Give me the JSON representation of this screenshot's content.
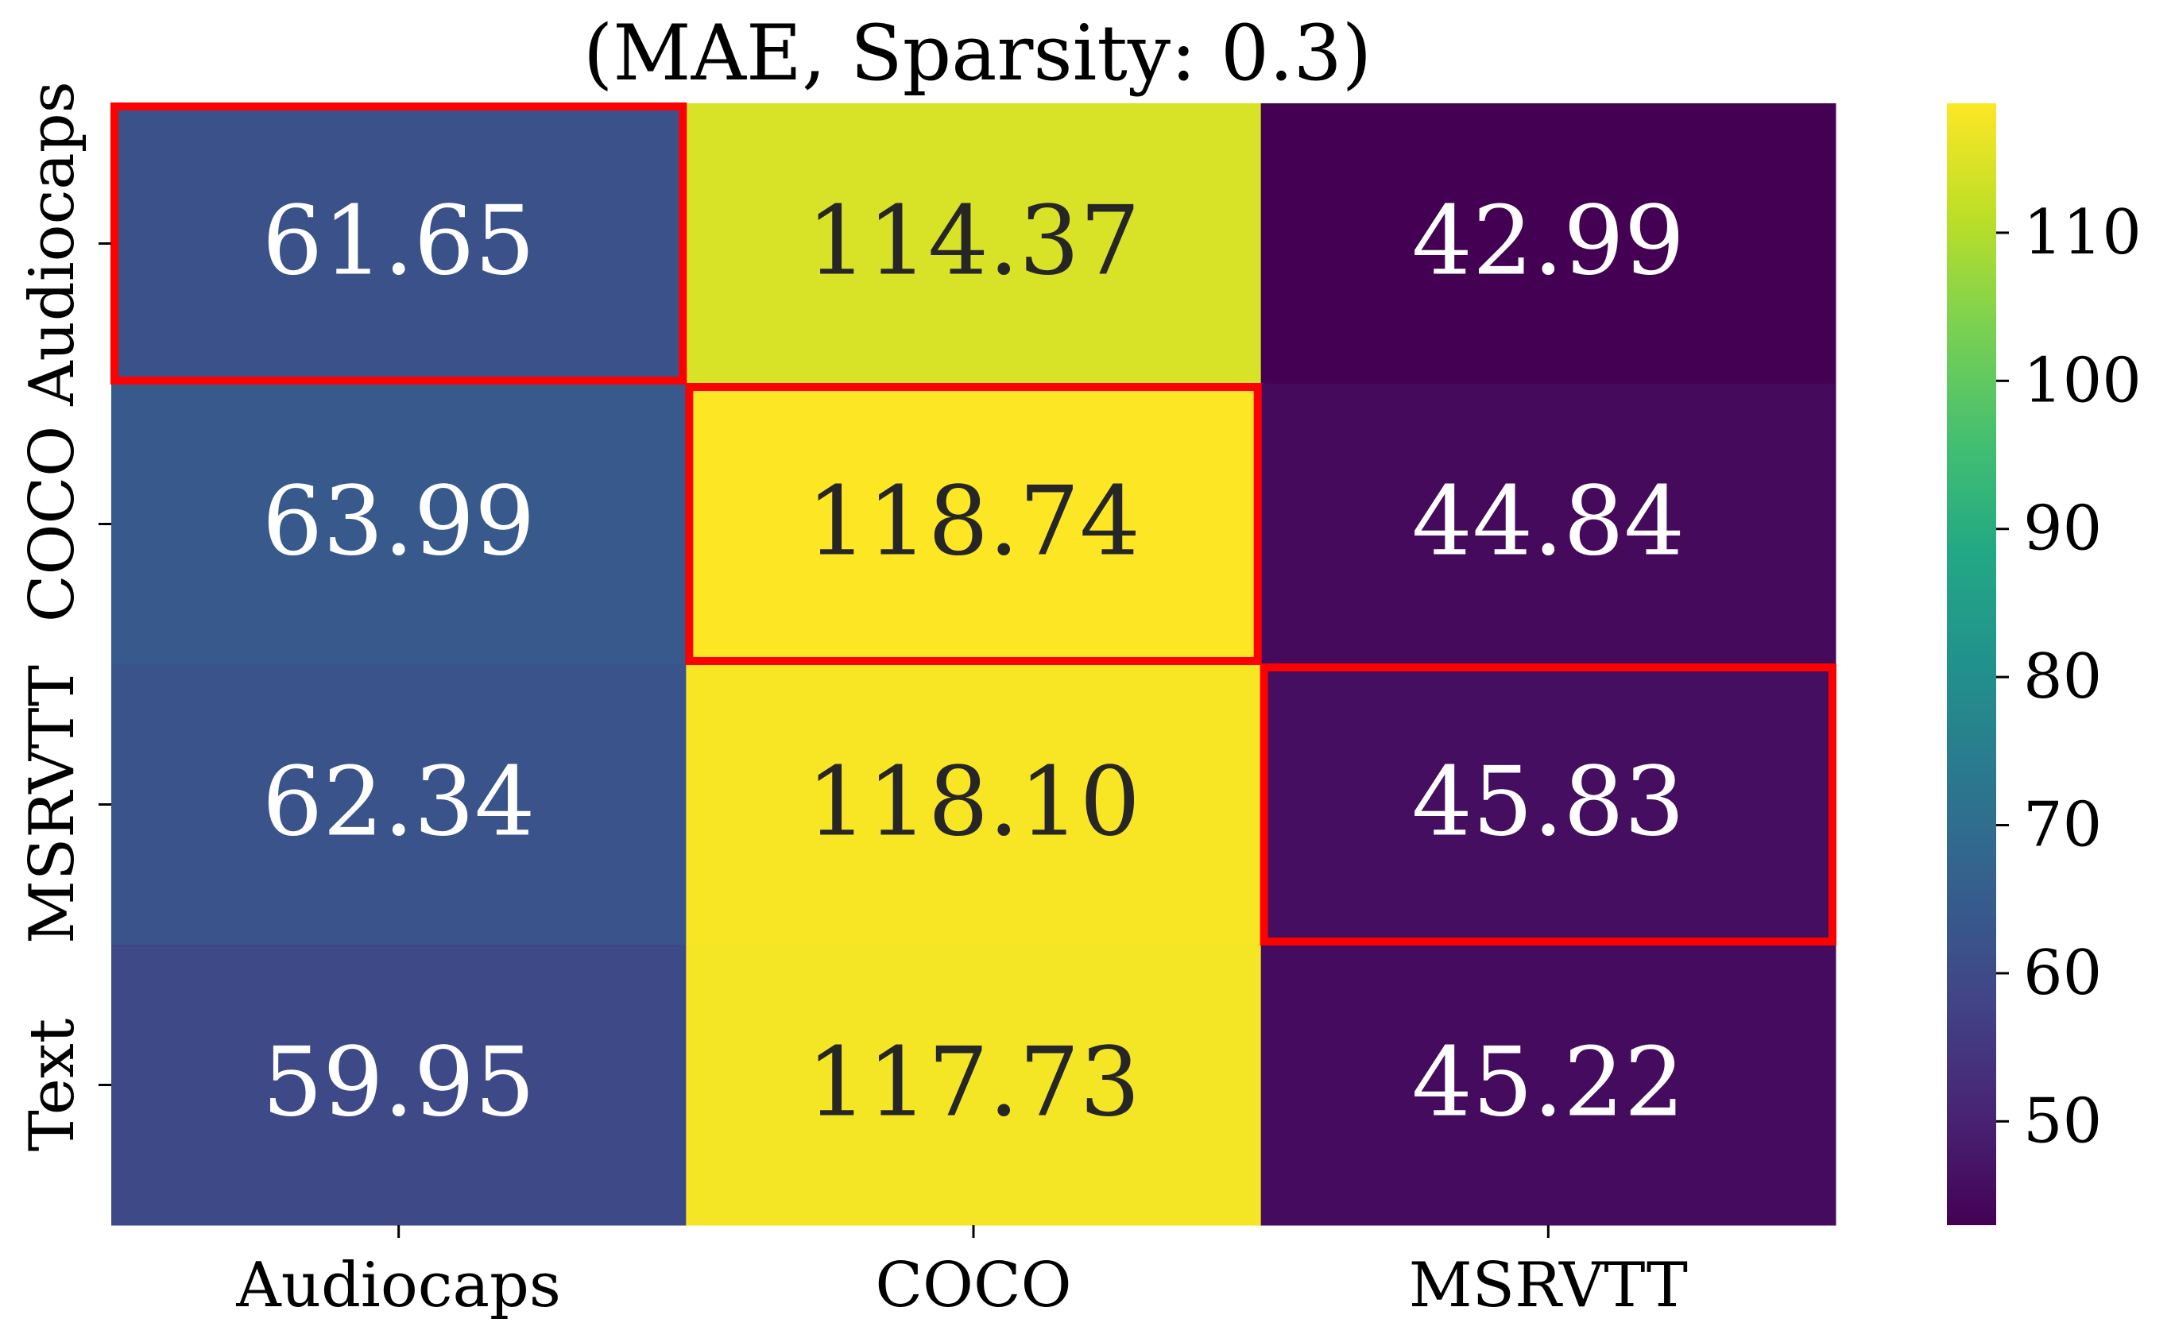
{
  "chart_data": {
    "type": "heatmap",
    "title": "(MAE, Sparsity: 0.3)",
    "columns": [
      "Audiocaps",
      "COCO",
      "MSRVTT"
    ],
    "rows": [
      "Audiocaps",
      "COCO",
      "MSRVTT",
      "Text"
    ],
    "values": [
      [
        61.65,
        114.37,
        42.99
      ],
      [
        63.99,
        118.74,
        44.84
      ],
      [
        62.34,
        118.1,
        45.83
      ],
      [
        59.95,
        117.73,
        45.22
      ]
    ],
    "value_labels": [
      [
        "61.65",
        "114.37",
        "42.99"
      ],
      [
        "63.99",
        "118.74",
        "44.84"
      ],
      [
        "62.34",
        "118.10",
        "45.83"
      ],
      [
        "59.95",
        "117.73",
        "45.22"
      ]
    ],
    "highlighted_cells": [
      [
        0,
        0
      ],
      [
        1,
        1
      ],
      [
        2,
        2
      ]
    ],
    "highlight_color": "#ff0000",
    "colormap": "viridis",
    "colorbar": {
      "vmin": 42.99,
      "vmax": 118.74,
      "ticks": [
        50,
        60,
        70,
        80,
        90,
        100,
        110
      ],
      "tick_labels": [
        "50",
        "60",
        "70",
        "80",
        "90",
        "100",
        "110"
      ]
    },
    "text_color_dark_bg": "#ffffff",
    "text_color_light_bg": "#262626",
    "xlabel": "",
    "ylabel": "",
    "colorbar_position": "right"
  }
}
